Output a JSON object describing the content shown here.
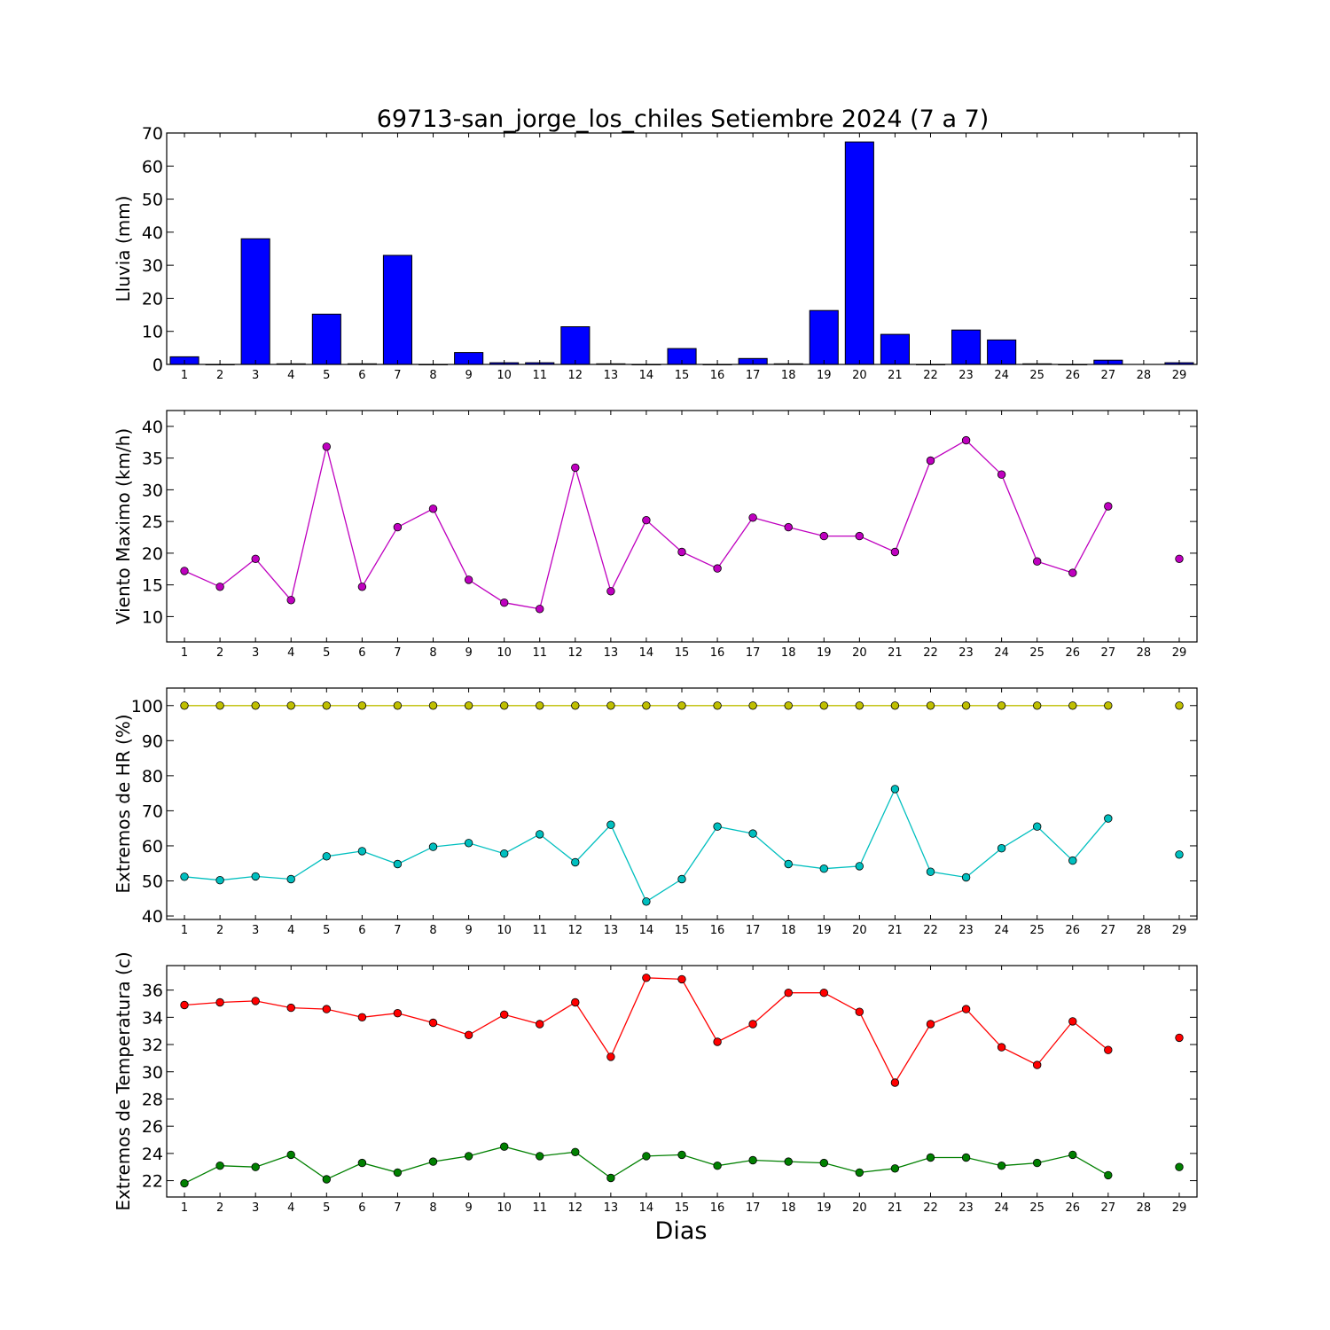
{
  "figure": {
    "title": "69713-san_jorge_los_chiles Setiembre 2024  (7 a 7)",
    "xlabel": "Dias"
  },
  "chart_data": [
    {
      "type": "bar",
      "ylabel": "Lluvia (mm)",
      "ylim": [
        0,
        70
      ],
      "yticks": [
        0,
        10,
        20,
        30,
        40,
        50,
        60,
        70
      ],
      "categories": [
        1,
        2,
        3,
        4,
        5,
        6,
        7,
        8,
        9,
        10,
        11,
        12,
        13,
        14,
        15,
        16,
        17,
        18,
        19,
        20,
        21,
        22,
        23,
        24,
        25,
        26,
        27,
        28,
        29
      ],
      "series": [
        {
          "color": "#0000ff",
          "values": [
            2.3,
            0.0,
            38.0,
            0.2,
            15.2,
            0.2,
            33.0,
            0.0,
            3.6,
            0.5,
            0.5,
            11.4,
            0.2,
            0.0,
            4.8,
            0.0,
            1.8,
            0.2,
            16.3,
            67.3,
            9.1,
            0.0,
            10.4,
            7.4,
            0.2,
            0.0,
            1.3,
            null,
            0.5
          ]
        }
      ]
    },
    {
      "type": "line",
      "ylabel": "Viento Maximo (km/h)",
      "ylim": [
        6,
        42.5
      ],
      "yticks": [
        10,
        15,
        20,
        25,
        30,
        35,
        40
      ],
      "categories": [
        1,
        2,
        3,
        4,
        5,
        6,
        7,
        8,
        9,
        10,
        11,
        12,
        13,
        14,
        15,
        16,
        17,
        18,
        19,
        20,
        21,
        22,
        23,
        24,
        25,
        26,
        27,
        28,
        29
      ],
      "series": [
        {
          "color": "#bf00bf",
          "values": [
            17.2,
            14.7,
            19.1,
            12.6,
            36.8,
            14.7,
            24.1,
            27.0,
            15.8,
            12.2,
            11.2,
            33.5,
            14.0,
            25.2,
            20.2,
            17.6,
            25.6,
            24.1,
            22.7,
            22.7,
            20.2,
            34.6,
            37.8,
            32.4,
            18.7,
            16.9,
            27.4,
            null,
            19.1
          ]
        }
      ]
    },
    {
      "type": "line",
      "ylabel": "Extremos de HR (%)",
      "ylim": [
        39,
        105
      ],
      "yticks": [
        40,
        50,
        60,
        70,
        80,
        90,
        100
      ],
      "categories": [
        1,
        2,
        3,
        4,
        5,
        6,
        7,
        8,
        9,
        10,
        11,
        12,
        13,
        14,
        15,
        16,
        17,
        18,
        19,
        20,
        21,
        22,
        23,
        24,
        25,
        26,
        27,
        28,
        29
      ],
      "series": [
        {
          "color": "#bfbf00",
          "values": [
            100,
            100,
            100,
            100,
            100,
            100,
            100,
            100,
            100,
            100,
            100,
            100,
            100,
            100,
            100,
            100,
            100,
            100,
            100,
            100,
            100,
            100,
            100,
            100,
            100,
            100,
            100,
            null,
            100
          ]
        },
        {
          "color": "#00bfbf",
          "values": [
            51.2,
            50.2,
            51.3,
            50.5,
            57.0,
            58.5,
            54.8,
            59.7,
            60.8,
            57.8,
            63.3,
            55.3,
            66.0,
            44.1,
            50.5,
            65.5,
            63.5,
            54.8,
            53.5,
            54.2,
            76.2,
            52.6,
            51.0,
            59.3,
            65.5,
            55.8,
            67.8,
            null,
            57.5
          ]
        }
      ]
    },
    {
      "type": "line",
      "ylabel": "Extremos de Temperatura (c)",
      "ylim": [
        20.8,
        37.8
      ],
      "yticks": [
        22,
        24,
        26,
        28,
        30,
        32,
        34,
        36
      ],
      "categories": [
        1,
        2,
        3,
        4,
        5,
        6,
        7,
        8,
        9,
        10,
        11,
        12,
        13,
        14,
        15,
        16,
        17,
        18,
        19,
        20,
        21,
        22,
        23,
        24,
        25,
        26,
        27,
        28,
        29
      ],
      "series": [
        {
          "color": "#ff0000",
          "values": [
            34.9,
            35.1,
            35.2,
            34.7,
            34.6,
            34.0,
            34.3,
            33.6,
            32.7,
            34.2,
            33.5,
            35.1,
            31.1,
            36.9,
            36.8,
            32.2,
            33.5,
            35.8,
            35.8,
            34.4,
            29.2,
            33.5,
            34.6,
            31.8,
            30.5,
            33.7,
            31.6,
            null,
            32.5
          ]
        },
        {
          "color": "#008000",
          "values": [
            21.8,
            23.1,
            23.0,
            23.9,
            22.1,
            23.3,
            22.6,
            23.4,
            23.8,
            24.5,
            23.8,
            24.1,
            22.2,
            23.8,
            23.9,
            23.1,
            23.5,
            23.4,
            23.3,
            22.6,
            22.9,
            23.7,
            23.7,
            23.1,
            23.3,
            23.9,
            22.4,
            null,
            23.0
          ]
        }
      ]
    }
  ]
}
